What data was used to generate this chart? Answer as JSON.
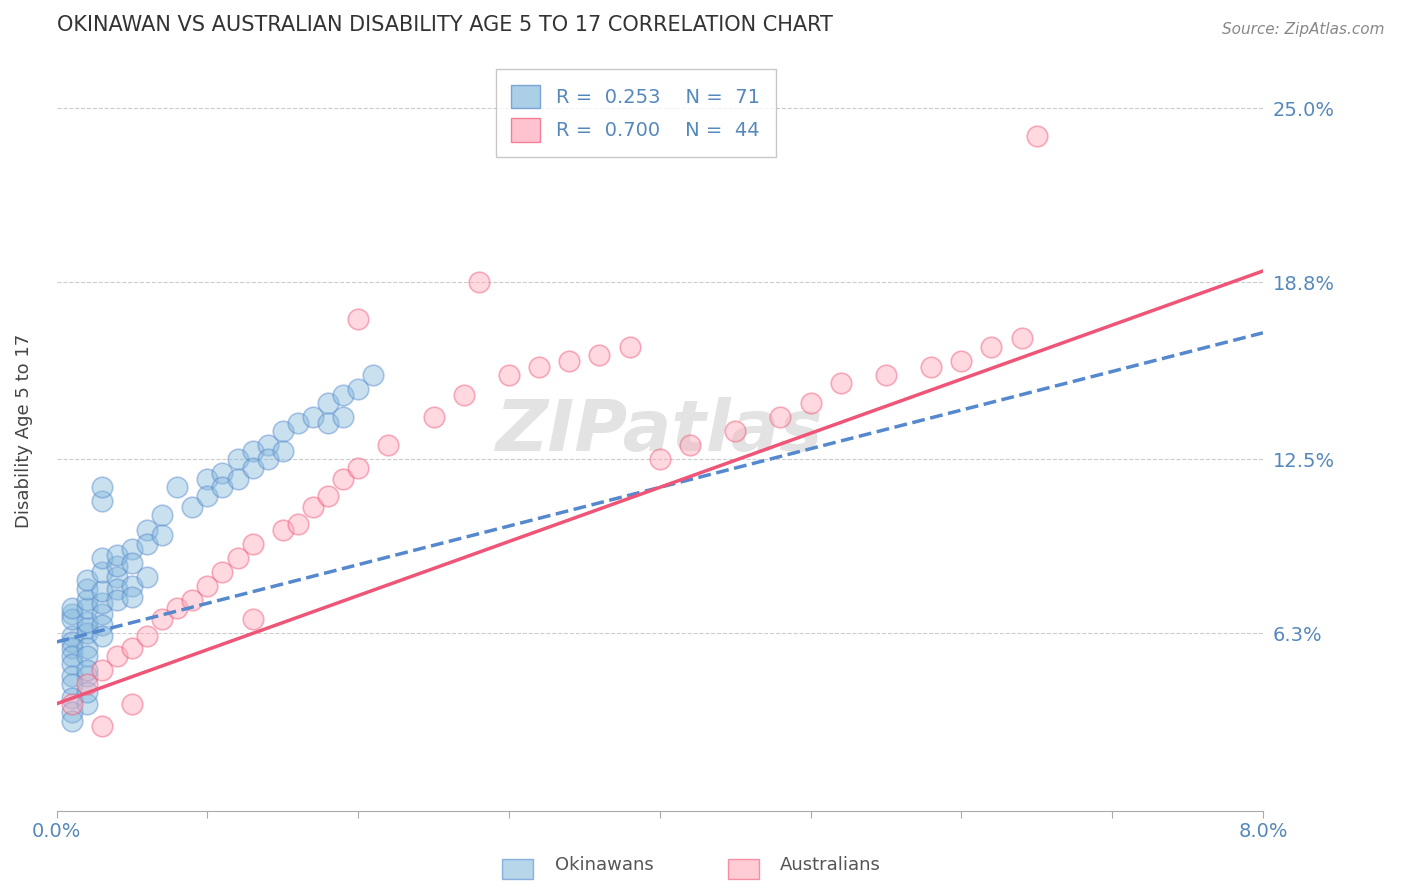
{
  "title": "OKINAWAN VS AUSTRALIAN DISABILITY AGE 5 TO 17 CORRELATION CHART",
  "source": "Source: ZipAtlas.com",
  "ylabel": "Disability Age 5 to 17",
  "xlim": [
    0.0,
    0.08
  ],
  "ylim": [
    0.0,
    0.27
  ],
  "legend_blue_R": "R =  0.253",
  "legend_blue_N": "N =  71",
  "legend_pink_R": "R =  0.700",
  "legend_pink_N": "N =  44",
  "blue_color": "#88BBDD",
  "pink_color": "#FFAABB",
  "trend_blue_color": "#5588CC",
  "trend_pink_color": "#EE5577",
  "watermark": "ZIPatlas",
  "blue_trend_x0": 0.0,
  "blue_trend_y0": 0.06,
  "blue_trend_x1": 0.08,
  "blue_trend_y1": 0.17,
  "pink_trend_x0": 0.0,
  "pink_trend_y0": 0.038,
  "pink_trend_x1": 0.08,
  "pink_trend_y1": 0.192,
  "okinawan_x": [
    0.001,
    0.001,
    0.001,
    0.001,
    0.001,
    0.001,
    0.001,
    0.001,
    0.001,
    0.002,
    0.002,
    0.002,
    0.002,
    0.002,
    0.002,
    0.002,
    0.002,
    0.002,
    0.002,
    0.003,
    0.003,
    0.003,
    0.003,
    0.003,
    0.003,
    0.003,
    0.003,
    0.004,
    0.004,
    0.004,
    0.004,
    0.004,
    0.005,
    0.005,
    0.005,
    0.005,
    0.006,
    0.006,
    0.006,
    0.007,
    0.007,
    0.008,
    0.009,
    0.01,
    0.01,
    0.011,
    0.011,
    0.012,
    0.012,
    0.013,
    0.013,
    0.014,
    0.014,
    0.015,
    0.015,
    0.016,
    0.017,
    0.018,
    0.018,
    0.019,
    0.019,
    0.02,
    0.021,
    0.001,
    0.001,
    0.001,
    0.001,
    0.002,
    0.002,
    0.002,
    0.003
  ],
  "okinawan_y": [
    0.062,
    0.06,
    0.058,
    0.07,
    0.055,
    0.052,
    0.048,
    0.068,
    0.072,
    0.065,
    0.063,
    0.067,
    0.072,
    0.058,
    0.055,
    0.048,
    0.075,
    0.079,
    0.082,
    0.07,
    0.074,
    0.078,
    0.066,
    0.062,
    0.085,
    0.09,
    0.11,
    0.083,
    0.087,
    0.079,
    0.075,
    0.091,
    0.093,
    0.088,
    0.08,
    0.076,
    0.1,
    0.095,
    0.083,
    0.105,
    0.098,
    0.115,
    0.108,
    0.118,
    0.112,
    0.12,
    0.115,
    0.125,
    0.118,
    0.128,
    0.122,
    0.13,
    0.125,
    0.135,
    0.128,
    0.138,
    0.14,
    0.145,
    0.138,
    0.148,
    0.14,
    0.15,
    0.155,
    0.045,
    0.04,
    0.035,
    0.032,
    0.038,
    0.042,
    0.05,
    0.115
  ],
  "australian_x": [
    0.001,
    0.002,
    0.003,
    0.003,
    0.004,
    0.005,
    0.005,
    0.006,
    0.007,
    0.008,
    0.009,
    0.01,
    0.011,
    0.012,
    0.013,
    0.015,
    0.016,
    0.017,
    0.018,
    0.019,
    0.02,
    0.022,
    0.025,
    0.027,
    0.03,
    0.032,
    0.034,
    0.036,
    0.038,
    0.04,
    0.042,
    0.045,
    0.048,
    0.05,
    0.052,
    0.055,
    0.058,
    0.06,
    0.062,
    0.064,
    0.065,
    0.013,
    0.02,
    0.028
  ],
  "australian_y": [
    0.038,
    0.045,
    0.05,
    0.03,
    0.055,
    0.058,
    0.038,
    0.062,
    0.068,
    0.072,
    0.075,
    0.08,
    0.085,
    0.09,
    0.095,
    0.1,
    0.102,
    0.108,
    0.112,
    0.118,
    0.122,
    0.13,
    0.14,
    0.148,
    0.155,
    0.158,
    0.16,
    0.162,
    0.165,
    0.125,
    0.13,
    0.135,
    0.14,
    0.145,
    0.152,
    0.155,
    0.158,
    0.16,
    0.165,
    0.168,
    0.24,
    0.068,
    0.175,
    0.188
  ],
  "background_color": "#ffffff",
  "grid_color": "#cccccc"
}
